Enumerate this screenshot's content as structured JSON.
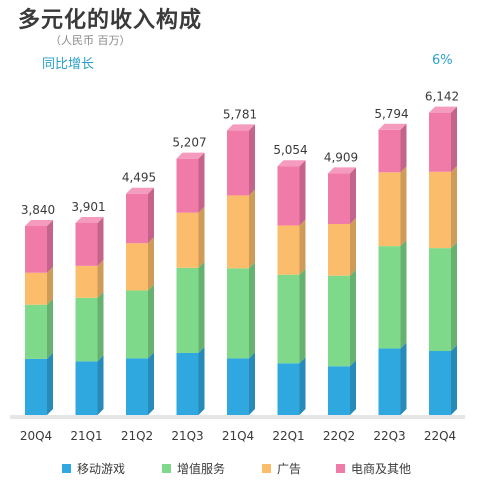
{
  "header": {
    "title": "多元化的收入构成",
    "unit": "（人民币 百万）",
    "yoy_label": "同比增长",
    "yoy_value": "6%"
  },
  "chart_data": {
    "type": "bar",
    "stacked": true,
    "categories": [
      "20Q4",
      "21Q1",
      "21Q2",
      "21Q3",
      "21Q4",
      "22Q1",
      "22Q2",
      "22Q3",
      "22Q4"
    ],
    "totals": [
      3840,
      3901,
      4495,
      5207,
      5781,
      5054,
      4909,
      5794,
      6142
    ],
    "total_labels": [
      "3,840",
      "3,901",
      "4,495",
      "5,207",
      "5,781",
      "5,054",
      "4,909",
      "5,794",
      "6,142"
    ],
    "series": [
      {
        "name": "移动游戏",
        "color": "#2fa8e0",
        "values": [
          1140,
          1090,
          1150,
          1260,
          1150,
          1050,
          990,
          1350,
          1300
        ]
      },
      {
        "name": "增值服务",
        "color": "#7ed98a",
        "values": [
          1100,
          1290,
          1380,
          1730,
          1830,
          1800,
          1840,
          2080,
          2090
        ]
      },
      {
        "name": "广告",
        "color": "#fbbd6c",
        "values": [
          650,
          650,
          960,
          1120,
          1480,
          1000,
          1050,
          1500,
          1550
        ]
      },
      {
        "name": "电商及其他",
        "color": "#f07aa8",
        "values": [
          950,
          871,
          1005,
          1097,
          1321,
          1204,
          1029,
          864,
          1202
        ]
      }
    ],
    "ylim": [
      0,
      6500
    ]
  }
}
